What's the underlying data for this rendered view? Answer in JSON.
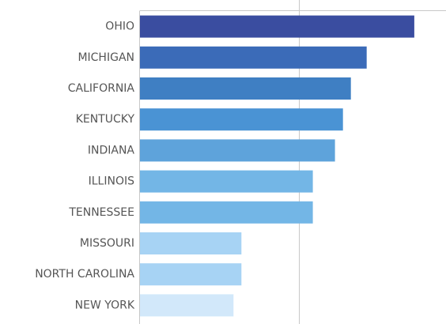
{
  "chart_data": {
    "type": "bar",
    "orientation": "horizontal",
    "categories": [
      "OHIO",
      "MICHIGAN",
      "CALIFORNIA",
      "KENTUCKY",
      "INDIANA",
      "ILLINOIS",
      "TENNESSEE",
      "MISSOURI",
      "NORTH CAROLINA",
      "NEW YORK"
    ],
    "values": [
      17.3,
      14.3,
      13.3,
      12.8,
      12.3,
      10.9,
      10.9,
      6.4,
      6.4,
      5.9
    ],
    "colors": [
      "#3a4da0",
      "#3b6bb8",
      "#3f7fc3",
      "#4a93d4",
      "#5ea3db",
      "#73b6e6",
      "#73b6e6",
      "#a7d3f4",
      "#a7d3f4",
      "#d2e8fa"
    ],
    "xlim": [
      0,
      19.3
    ],
    "gridlines_x": [
      10
    ],
    "grid": true,
    "title": "",
    "xlabel": "",
    "ylabel": ""
  }
}
